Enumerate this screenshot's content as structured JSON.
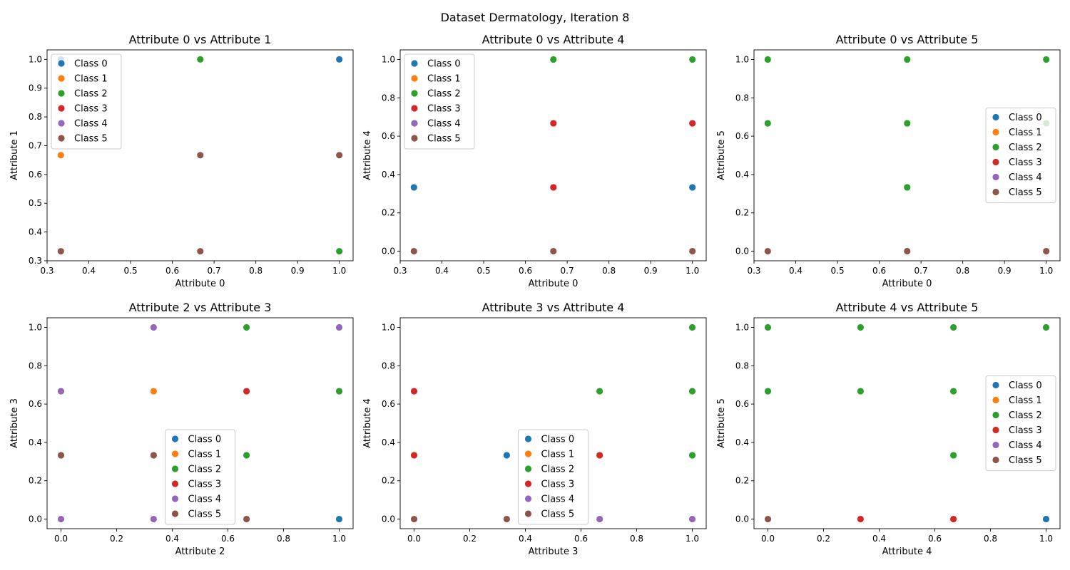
{
  "figure": {
    "title": "Dataset Dermatology, Iteration 8"
  },
  "classes": [
    {
      "name": "Class 0",
      "color": "#1f77b4"
    },
    {
      "name": "Class 1",
      "color": "#ff7f0e"
    },
    {
      "name": "Class 2",
      "color": "#2ca02c"
    },
    {
      "name": "Class 3",
      "color": "#d62728"
    },
    {
      "name": "Class 4",
      "color": "#9467bd"
    },
    {
      "name": "Class 5",
      "color": "#8c564b"
    }
  ],
  "chart_data": [
    {
      "type": "scatter",
      "title": "Attribute 0 vs Attribute 1",
      "xlabel": "Attribute 0",
      "ylabel": "Attribute 1",
      "xlim": [
        0.3,
        1.033
      ],
      "ylim": [
        0.3,
        1.033
      ],
      "xticks": [
        0.3,
        0.4,
        0.5,
        0.6,
        0.7,
        0.8,
        0.9,
        1.0
      ],
      "yticks": [
        0.3,
        0.4,
        0.5,
        0.6,
        0.7,
        0.8,
        0.9,
        1.0
      ],
      "legend": "upper-left",
      "series": [
        {
          "name": "Class 0",
          "points": [
            [
              0.333,
              1.0
            ],
            [
              1.0,
              1.0
            ]
          ]
        },
        {
          "name": "Class 1",
          "points": [
            [
              0.333,
              0.667
            ]
          ]
        },
        {
          "name": "Class 2",
          "points": [
            [
              0.667,
              1.0
            ],
            [
              1.0,
              0.333
            ]
          ]
        },
        {
          "name": "Class 3",
          "points": []
        },
        {
          "name": "Class 4",
          "points": []
        },
        {
          "name": "Class 5",
          "points": [
            [
              0.333,
              0.333
            ],
            [
              0.667,
              0.667
            ],
            [
              0.667,
              0.333
            ],
            [
              1.0,
              0.667
            ]
          ]
        }
      ]
    },
    {
      "type": "scatter",
      "title": "Attribute 0 vs Attribute 4",
      "xlabel": "Attribute 0",
      "ylabel": "Attribute 4",
      "xlim": [
        0.3,
        1.033
      ],
      "ylim": [
        -0.05,
        1.05
      ],
      "xticks": [
        0.3,
        0.4,
        0.5,
        0.6,
        0.7,
        0.8,
        0.9,
        1.0
      ],
      "yticks": [
        0.0,
        0.2,
        0.4,
        0.6,
        0.8,
        1.0
      ],
      "legend": "upper-left",
      "series": [
        {
          "name": "Class 0",
          "points": [
            [
              0.333,
              0.333
            ],
            [
              1.0,
              0.333
            ]
          ]
        },
        {
          "name": "Class 1",
          "points": []
        },
        {
          "name": "Class 2",
          "points": [
            [
              0.333,
              0.667
            ],
            [
              0.667,
              1.0
            ],
            [
              1.0,
              1.0
            ]
          ]
        },
        {
          "name": "Class 3",
          "points": [
            [
              0.667,
              0.667
            ],
            [
              0.667,
              0.333
            ],
            [
              1.0,
              0.667
            ]
          ]
        },
        {
          "name": "Class 4",
          "points": []
        },
        {
          "name": "Class 5",
          "points": [
            [
              0.333,
              0.0
            ],
            [
              0.667,
              0.0
            ],
            [
              1.0,
              0.0
            ]
          ]
        }
      ]
    },
    {
      "type": "scatter",
      "title": "Attribute 0 vs Attribute 5",
      "xlabel": "Attribute 0",
      "ylabel": "Attribute 5",
      "xlim": [
        0.3,
        1.033
      ],
      "ylim": [
        -0.05,
        1.05
      ],
      "xticks": [
        0.3,
        0.4,
        0.5,
        0.6,
        0.7,
        0.8,
        0.9,
        1.0
      ],
      "yticks": [
        0.0,
        0.2,
        0.4,
        0.6,
        0.8,
        1.0
      ],
      "legend": "center-right",
      "series": [
        {
          "name": "Class 0",
          "points": []
        },
        {
          "name": "Class 1",
          "points": []
        },
        {
          "name": "Class 2",
          "points": [
            [
              0.333,
              1.0
            ],
            [
              0.333,
              0.667
            ],
            [
              0.667,
              1.0
            ],
            [
              0.667,
              0.667
            ],
            [
              0.667,
              0.333
            ],
            [
              1.0,
              1.0
            ],
            [
              1.0,
              0.667
            ]
          ]
        },
        {
          "name": "Class 3",
          "points": []
        },
        {
          "name": "Class 4",
          "points": []
        },
        {
          "name": "Class 5",
          "points": [
            [
              0.333,
              0.0
            ],
            [
              0.667,
              0.0
            ],
            [
              1.0,
              0.0
            ]
          ]
        }
      ]
    },
    {
      "type": "scatter",
      "title": "Attribute 2 vs Attribute 3",
      "xlabel": "Attribute 2",
      "ylabel": "Attribute 3",
      "xlim": [
        -0.05,
        1.05
      ],
      "ylim": [
        -0.05,
        1.05
      ],
      "xticks": [
        0.0,
        0.2,
        0.4,
        0.6,
        0.8,
        1.0
      ],
      "yticks": [
        0.0,
        0.2,
        0.4,
        0.6,
        0.8,
        1.0
      ],
      "legend": "lower-center",
      "series": [
        {
          "name": "Class 0",
          "points": [
            [
              1.0,
              0.0
            ]
          ]
        },
        {
          "name": "Class 1",
          "points": [
            [
              0.333,
              0.667
            ]
          ]
        },
        {
          "name": "Class 2",
          "points": [
            [
              0.667,
              1.0
            ],
            [
              0.667,
              0.333
            ],
            [
              1.0,
              0.667
            ]
          ]
        },
        {
          "name": "Class 3",
          "points": [
            [
              0.667,
              0.667
            ]
          ]
        },
        {
          "name": "Class 4",
          "points": [
            [
              0.0,
              0.667
            ],
            [
              0.0,
              0.0
            ],
            [
              0.333,
              1.0
            ],
            [
              0.333,
              0.0
            ],
            [
              1.0,
              1.0
            ]
          ]
        },
        {
          "name": "Class 5",
          "points": [
            [
              0.0,
              0.333
            ],
            [
              0.333,
              0.333
            ],
            [
              0.667,
              0.0
            ]
          ]
        }
      ]
    },
    {
      "type": "scatter",
      "title": "Attribute 3 vs Attribute 4",
      "xlabel": "Attribute 3",
      "ylabel": "Attribute 4",
      "xlim": [
        -0.05,
        1.05
      ],
      "ylim": [
        -0.05,
        1.05
      ],
      "xticks": [
        0.0,
        0.2,
        0.4,
        0.6,
        0.8,
        1.0
      ],
      "yticks": [
        0.0,
        0.2,
        0.4,
        0.6,
        0.8,
        1.0
      ],
      "legend": "lower-center",
      "series": [
        {
          "name": "Class 0",
          "points": [
            [
              0.333,
              0.333
            ]
          ]
        },
        {
          "name": "Class 1",
          "points": []
        },
        {
          "name": "Class 2",
          "points": [
            [
              0.667,
              0.667
            ],
            [
              1.0,
              1.0
            ],
            [
              1.0,
              0.667
            ],
            [
              1.0,
              0.333
            ]
          ]
        },
        {
          "name": "Class 3",
          "points": [
            [
              0.0,
              0.667
            ],
            [
              0.0,
              0.333
            ],
            [
              0.667,
              0.333
            ]
          ]
        },
        {
          "name": "Class 4",
          "points": [
            [
              0.667,
              0.0
            ],
            [
              1.0,
              0.0
            ]
          ]
        },
        {
          "name": "Class 5",
          "points": [
            [
              0.0,
              0.0
            ],
            [
              0.333,
              0.0
            ]
          ]
        }
      ]
    },
    {
      "type": "scatter",
      "title": "Attribute 4 vs Attribute 5",
      "xlabel": "Attribute 4",
      "ylabel": "Attribute 5",
      "xlim": [
        -0.05,
        1.05
      ],
      "ylim": [
        -0.05,
        1.05
      ],
      "xticks": [
        0.0,
        0.2,
        0.4,
        0.6,
        0.8,
        1.0
      ],
      "yticks": [
        0.0,
        0.2,
        0.4,
        0.6,
        0.8,
        1.0
      ],
      "legend": "center-right",
      "series": [
        {
          "name": "Class 0",
          "points": [
            [
              1.0,
              0.0
            ]
          ]
        },
        {
          "name": "Class 1",
          "points": []
        },
        {
          "name": "Class 2",
          "points": [
            [
              0.0,
              1.0
            ],
            [
              0.0,
              0.667
            ],
            [
              0.333,
              1.0
            ],
            [
              0.333,
              0.667
            ],
            [
              0.667,
              1.0
            ],
            [
              0.667,
              0.667
            ],
            [
              0.667,
              0.333
            ],
            [
              1.0,
              1.0
            ]
          ]
        },
        {
          "name": "Class 3",
          "points": [
            [
              0.333,
              0.0
            ],
            [
              0.667,
              0.0
            ]
          ]
        },
        {
          "name": "Class 4",
          "points": []
        },
        {
          "name": "Class 5",
          "points": [
            [
              0.0,
              0.0
            ]
          ]
        }
      ]
    }
  ]
}
